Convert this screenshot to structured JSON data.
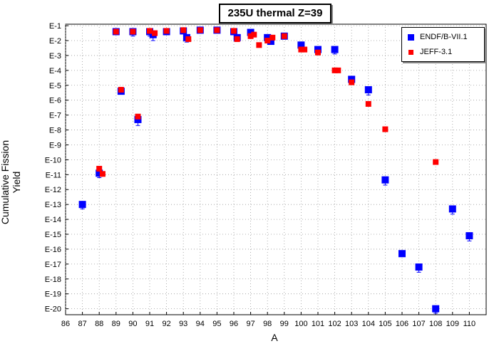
{
  "chart_data": {
    "type": "scatter",
    "title": "235U thermal Z=39",
    "xlabel": "A",
    "ylabel": "Cumulative Fission Yield",
    "x_ticks": [
      "86",
      "87",
      "88",
      "89",
      "90",
      "91",
      "92",
      "93",
      "94",
      "95",
      "96",
      "97",
      "98",
      "99",
      "100",
      "101",
      "102",
      "103",
      "104",
      "105",
      "106",
      "107",
      "108",
      "109",
      "110"
    ],
    "y_ticks": [
      "E-1",
      "E-2",
      "E-3",
      "E-4",
      "E-5",
      "E-6",
      "E-7",
      "E-8",
      "E-9",
      "E-10",
      "E-11",
      "E-12",
      "E-13",
      "E-14",
      "E-15",
      "E-16",
      "E-17",
      "E-18",
      "E-19",
      "E-20"
    ],
    "xlim": [
      86,
      111
    ],
    "y_scale": "log",
    "ylim_exponent": [
      -20.4,
      -0.9
    ],
    "grid": true,
    "legend_position": "top-right",
    "series": [
      {
        "name": "ENDF/B-VII.1",
        "color": "#0000ff",
        "marker": "square",
        "points": [
          {
            "x": 87,
            "exp": -13.0,
            "err": 0.3
          },
          {
            "x": 88,
            "exp": -10.9,
            "err": 0.3
          },
          {
            "x": 89,
            "exp": -1.4,
            "err": 0
          },
          {
            "x": 89.3,
            "exp": -5.4,
            "err": 0
          },
          {
            "x": 90,
            "exp": -1.4,
            "err": 0.3
          },
          {
            "x": 90.3,
            "exp": -7.3,
            "err": 0.4
          },
          {
            "x": 91,
            "exp": -1.4,
            "err": 0.3
          },
          {
            "x": 91.2,
            "exp": -1.6,
            "err": 0.4
          },
          {
            "x": 92,
            "exp": -1.4,
            "err": 0
          },
          {
            "x": 93,
            "exp": -1.35,
            "err": 0.2
          },
          {
            "x": 93.2,
            "exp": -1.8,
            "err": 0.3
          },
          {
            "x": 94,
            "exp": -1.3,
            "err": 0
          },
          {
            "x": 95,
            "exp": -1.3,
            "err": 0
          },
          {
            "x": 96,
            "exp": -1.4,
            "err": 0
          },
          {
            "x": 96.2,
            "exp": -1.8,
            "err": 0.2
          },
          {
            "x": 97,
            "exp": -1.45,
            "err": 0.2
          },
          {
            "x": 98,
            "exp": -1.8,
            "err": 0
          },
          {
            "x": 98.2,
            "exp": -2.05,
            "err": 0
          },
          {
            "x": 99,
            "exp": -1.7,
            "err": 0
          },
          {
            "x": 100,
            "exp": -2.3,
            "err": 0.2
          },
          {
            "x": 101,
            "exp": -2.6,
            "err": 0.2
          },
          {
            "x": 102,
            "exp": -2.6,
            "err": 0.3
          },
          {
            "x": 103,
            "exp": -4.6,
            "err": 0.3
          },
          {
            "x": 104,
            "exp": -5.3,
            "err": 0.35
          },
          {
            "x": 105,
            "exp": -11.35,
            "err": 0.35
          },
          {
            "x": 106,
            "exp": -16.3,
            "err": 0.2
          },
          {
            "x": 107,
            "exp": -17.2,
            "err": 0.35
          },
          {
            "x": 108,
            "exp": -20.0,
            "err": 0.3
          },
          {
            "x": 109,
            "exp": -13.3,
            "err": 0.35
          },
          {
            "x": 110,
            "exp": -15.1,
            "err": 0.35
          }
        ]
      },
      {
        "name": "JEFF-3.1",
        "color": "#ff0000",
        "marker": "square",
        "points": [
          {
            "x": 88,
            "exp": -10.6
          },
          {
            "x": 88.2,
            "exp": -10.95
          },
          {
            "x": 89,
            "exp": -1.4
          },
          {
            "x": 89.3,
            "exp": -5.3
          },
          {
            "x": 90,
            "exp": -1.4
          },
          {
            "x": 90.3,
            "exp": -7.1
          },
          {
            "x": 91,
            "exp": -1.35
          },
          {
            "x": 91.3,
            "exp": -1.5
          },
          {
            "x": 92,
            "exp": -1.35
          },
          {
            "x": 93,
            "exp": -1.3
          },
          {
            "x": 93.3,
            "exp": -1.9
          },
          {
            "x": 94,
            "exp": -1.3
          },
          {
            "x": 95,
            "exp": -1.3
          },
          {
            "x": 96,
            "exp": -1.35
          },
          {
            "x": 96.2,
            "exp": -1.9
          },
          {
            "x": 97,
            "exp": -1.7
          },
          {
            "x": 97.2,
            "exp": -1.6
          },
          {
            "x": 97.5,
            "exp": -2.3
          },
          {
            "x": 98,
            "exp": -2.0
          },
          {
            "x": 98.3,
            "exp": -1.8
          },
          {
            "x": 99,
            "exp": -1.7
          },
          {
            "x": 100,
            "exp": -2.6
          },
          {
            "x": 100.2,
            "exp": -2.6
          },
          {
            "x": 101,
            "exp": -2.8
          },
          {
            "x": 102,
            "exp": -4.0
          },
          {
            "x": 102.2,
            "exp": -4.0
          },
          {
            "x": 103,
            "exp": -4.8
          },
          {
            "x": 104,
            "exp": -6.25
          },
          {
            "x": 105,
            "exp": -7.95
          },
          {
            "x": 108,
            "exp": -10.15
          }
        ]
      }
    ]
  }
}
